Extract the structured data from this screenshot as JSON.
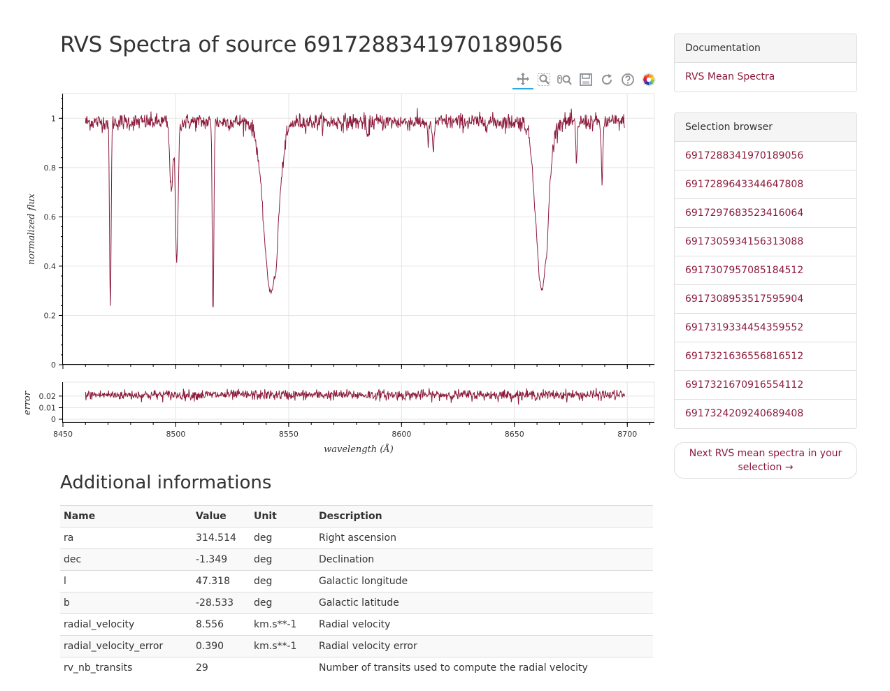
{
  "page": {
    "title": "RVS Spectra of source 6917288341970189056"
  },
  "toolbar": {
    "tools": [
      "pan-icon",
      "box-zoom-icon",
      "wheel-zoom-icon",
      "save-icon",
      "reset-icon",
      "help-icon",
      "bokeh-logo-icon"
    ]
  },
  "chart_data": [
    {
      "type": "line",
      "ylabel": "normalized flux",
      "ylim": [
        0,
        1.1
      ],
      "xlim": [
        8450,
        8712
      ],
      "y_ticks": [
        "0",
        "0.2",
        "0.4",
        "0.6",
        "0.8",
        "1"
      ],
      "grid": true,
      "color": "#8c1b3c",
      "continuum": 0.985,
      "x_range": [
        8460,
        8699
      ],
      "absorption_lines": [
        {
          "center": 8471,
          "depth": 0.76,
          "width": 0.35
        },
        {
          "center": 8498.0,
          "depth": 0.28,
          "width": 0.7
        },
        {
          "center": 8500.4,
          "depth": 0.58,
          "width": 0.6
        },
        {
          "center": 8516.5,
          "depth": 0.79,
          "width": 0.35
        },
        {
          "center": 8542.1,
          "depth": 0.7,
          "width": 3.2
        },
        {
          "center": 8544.4,
          "depth": 0.18,
          "width": 0.5
        },
        {
          "center": 8585,
          "depth": 0.08,
          "width": 0.4
        },
        {
          "center": 8611.8,
          "depth": 0.08,
          "width": 0.4
        },
        {
          "center": 8614,
          "depth": 0.13,
          "width": 0.4
        },
        {
          "center": 8662.1,
          "depth": 0.69,
          "width": 2.6
        },
        {
          "center": 8664.4,
          "depth": 0.13,
          "width": 0.5
        },
        {
          "center": 8677.5,
          "depth": 0.17,
          "width": 0.35
        },
        {
          "center": 8688.8,
          "depth": 0.26,
          "width": 0.35
        }
      ]
    },
    {
      "type": "line",
      "ylabel": "error",
      "xlabel": "wavelength (Å)",
      "ylim": [
        -0.003,
        0.032
      ],
      "xlim": [
        8450,
        8712
      ],
      "x_ticks": [
        "8450",
        "8500",
        "8550",
        "8600",
        "8650",
        "8700"
      ],
      "y_ticks": [
        "0",
        "0.01",
        "0.02"
      ],
      "grid": true,
      "color": "#8c1b3c",
      "mean": 0.021,
      "spread": 0.0022,
      "x_range": [
        8460,
        8699
      ]
    }
  ],
  "additional": {
    "title": "Additional informations",
    "headers": [
      "Name",
      "Value",
      "Unit",
      "Description"
    ],
    "rows": [
      [
        "ra",
        "314.514",
        "deg",
        "Right ascension"
      ],
      [
        "dec",
        "-1.349",
        "deg",
        "Declination"
      ],
      [
        "l",
        "47.318",
        "deg",
        "Galactic longitude"
      ],
      [
        "b",
        "-28.533",
        "deg",
        "Galactic latitude"
      ],
      [
        "radial_velocity",
        "8.556",
        "km.s**-1",
        "Radial velocity"
      ],
      [
        "radial_velocity_error",
        "0.390",
        "km.s**-1",
        "Radial velocity error"
      ],
      [
        "rv_nb_transits",
        "29",
        "",
        "Number of transits used to compute the radial velocity"
      ]
    ]
  },
  "documentation": {
    "heading": "Documentation",
    "links": [
      "RVS Mean Spectra"
    ]
  },
  "selection": {
    "heading": "Selection browser",
    "items": [
      "6917288341970189056",
      "6917289643344647808",
      "6917297683523416064",
      "6917305934156313088",
      "6917307957085184512",
      "6917308953517595904",
      "6917319334454359552",
      "6917321636556816512",
      "6917321670916554112",
      "6917324209240689408"
    ]
  },
  "next_button": {
    "label": "Next RVS mean spectra in your selection →"
  }
}
